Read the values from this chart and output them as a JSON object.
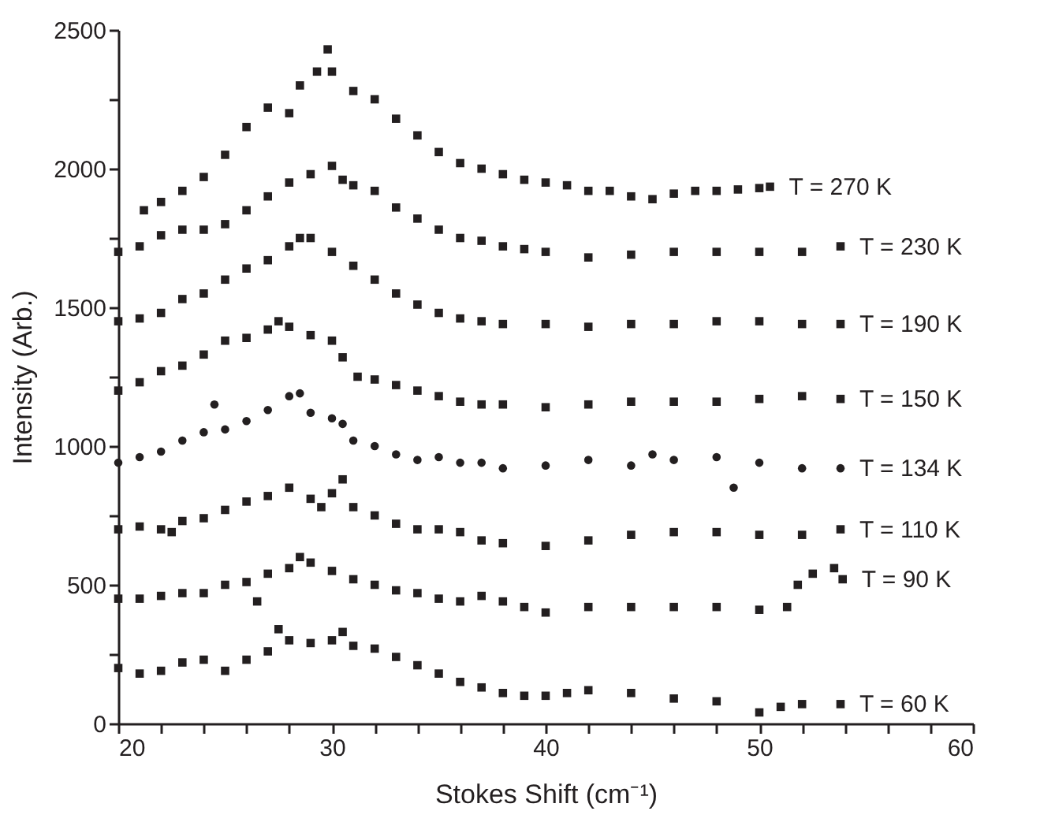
{
  "chart_data": {
    "type": "scatter",
    "xlabel": "Stokes Shift (cm⁻¹)",
    "ylabel": "Intensity (Arb.)",
    "xlim": [
      20,
      60
    ],
    "ylim": [
      0,
      2500
    ],
    "xticks": [
      20,
      {
        "value": 22,
        "label": null
      },
      {
        "value": 24,
        "label": null
      },
      {
        "value": 26,
        "label": null
      },
      {
        "value": 28,
        "label": null
      },
      30,
      {
        "value": 32,
        "label": null
      },
      {
        "value": 34,
        "label": null
      },
      {
        "value": 36,
        "label": null
      },
      {
        "value": 38,
        "label": null
      },
      40,
      {
        "value": 42,
        "label": null
      },
      {
        "value": 44,
        "label": null
      },
      {
        "value": 46,
        "label": null
      },
      {
        "value": 48,
        "label": null
      },
      50,
      {
        "value": 52,
        "label": null
      },
      {
        "value": 54,
        "label": null
      },
      {
        "value": 56,
        "label": null
      },
      {
        "value": 58,
        "label": null
      },
      60
    ],
    "yticks": [
      0,
      {
        "value": 250,
        "label": null
      },
      500,
      {
        "value": 750,
        "label": null
      },
      1000,
      {
        "value": 1250,
        "label": null
      },
      1500,
      {
        "value": 1750,
        "label": null
      },
      2000,
      {
        "value": 2250,
        "label": null
      },
      2500
    ],
    "grid": false,
    "legend": false,
    "series": [
      {
        "name": "T = 270 K",
        "color": "#231f20",
        "marker": "square",
        "x": [
          21.2,
          22,
          23,
          24,
          25,
          26,
          27,
          28,
          28.5,
          29.3,
          29.8,
          30,
          31,
          32,
          33,
          34,
          35,
          36,
          37,
          38,
          39,
          40,
          41,
          42,
          43,
          44,
          45,
          46,
          47,
          48,
          49,
          50,
          50.5
        ],
        "values": [
          1850,
          1880,
          1920,
          1970,
          2050,
          2150,
          2220,
          2200,
          2300,
          2350,
          2430,
          2350,
          2280,
          2250,
          2180,
          2120,
          2060,
          2020,
          2000,
          1980,
          1960,
          1950,
          1940,
          1920,
          1920,
          1900,
          1890,
          1910,
          1920,
          1920,
          1925,
          1930,
          1935
        ]
      },
      {
        "name": "T = 230 K",
        "color": "#231f20",
        "marker": "square",
        "x": [
          20,
          21,
          22,
          23,
          24,
          25,
          26,
          27,
          28,
          29,
          30,
          30.5,
          31,
          32,
          33,
          34,
          35,
          36,
          37,
          38,
          39,
          40,
          42,
          44,
          46,
          48,
          50,
          52,
          53.8
        ],
        "values": [
          1700,
          1720,
          1760,
          1780,
          1780,
          1800,
          1850,
          1900,
          1950,
          1980,
          2010,
          1960,
          1940,
          1920,
          1860,
          1820,
          1780,
          1750,
          1740,
          1720,
          1710,
          1700,
          1680,
          1690,
          1700,
          1700,
          1700,
          1700,
          1720
        ]
      },
      {
        "name": "T = 190 K",
        "color": "#231f20",
        "marker": "square",
        "x": [
          20,
          21,
          22,
          23,
          24,
          25,
          26,
          27,
          28,
          28.5,
          29,
          30,
          31,
          32,
          33,
          34,
          35,
          36,
          37,
          38,
          40,
          42,
          44,
          46,
          48,
          50,
          52,
          53.8
        ],
        "values": [
          1450,
          1460,
          1480,
          1530,
          1550,
          1600,
          1640,
          1670,
          1720,
          1750,
          1750,
          1700,
          1650,
          1600,
          1550,
          1510,
          1480,
          1460,
          1450,
          1440,
          1440,
          1430,
          1440,
          1440,
          1450,
          1450,
          1440,
          1440
        ]
      },
      {
        "name": "T = 150 K",
        "color": "#231f20",
        "marker": "square",
        "x": [
          20,
          21,
          22,
          23,
          24,
          25,
          26,
          27,
          27.5,
          28,
          29,
          30,
          30.5,
          31.2,
          32,
          33,
          34,
          35,
          36,
          37,
          38,
          40,
          42,
          44,
          46,
          48,
          50,
          52,
          53.8
        ],
        "values": [
          1200,
          1230,
          1270,
          1290,
          1330,
          1380,
          1390,
          1420,
          1450,
          1430,
          1400,
          1380,
          1320,
          1250,
          1240,
          1220,
          1200,
          1180,
          1160,
          1150,
          1150,
          1140,
          1150,
          1160,
          1160,
          1160,
          1170,
          1180,
          1170
        ]
      },
      {
        "name": "T = 134 K",
        "color": "#231f20",
        "marker": "circle",
        "x": [
          20,
          21,
          22,
          23,
          24,
          24.5,
          25,
          26,
          27,
          28,
          28.5,
          29,
          30,
          30.5,
          31,
          32,
          33,
          34,
          35,
          36,
          37,
          38,
          40,
          42,
          44,
          45,
          46,
          48,
          48.8,
          50,
          52,
          53.8
        ],
        "values": [
          940,
          960,
          980,
          1020,
          1050,
          1150,
          1060,
          1090,
          1130,
          1180,
          1190,
          1120,
          1100,
          1080,
          1020,
          1000,
          970,
          950,
          960,
          940,
          940,
          920,
          930,
          950,
          930,
          970,
          950,
          960,
          850,
          940,
          920,
          920
        ]
      },
      {
        "name": "T = 110 K",
        "color": "#231f20",
        "marker": "square",
        "x": [
          20,
          21,
          22,
          22.5,
          23,
          24,
          25,
          26,
          27,
          28,
          29,
          29.5,
          30,
          30.5,
          31,
          32,
          33,
          34,
          35,
          36,
          37,
          38,
          40,
          42,
          44,
          46,
          48,
          50,
          52,
          53.8
        ],
        "values": [
          700,
          710,
          700,
          690,
          730,
          740,
          770,
          800,
          820,
          850,
          810,
          780,
          830,
          880,
          780,
          750,
          720,
          700,
          700,
          690,
          660,
          650,
          640,
          660,
          680,
          690,
          690,
          680,
          680,
          700
        ]
      },
      {
        "name": "T = 90 K",
        "color": "#231f20",
        "marker": "square",
        "x": [
          20,
          21,
          22,
          23,
          24,
          25,
          26,
          26.5,
          27,
          28,
          28.5,
          29,
          30,
          31,
          32,
          33,
          34,
          35,
          36,
          37,
          38,
          39,
          40,
          42,
          44,
          46,
          48,
          50,
          51.3,
          51.8,
          52.5,
          53.5,
          53.9
        ],
        "values": [
          450,
          450,
          460,
          470,
          470,
          500,
          510,
          440,
          540,
          560,
          600,
          580,
          550,
          520,
          500,
          480,
          470,
          450,
          440,
          460,
          440,
          420,
          400,
          420,
          420,
          420,
          420,
          410,
          420,
          500,
          540,
          560,
          520
        ]
      },
      {
        "name": "T = 60 K",
        "color": "#231f20",
        "marker": "square",
        "x": [
          20,
          21,
          22,
          23,
          24,
          25,
          26,
          27,
          27.5,
          28,
          29,
          30,
          30.5,
          31,
          32,
          33,
          34,
          35,
          36,
          37,
          38,
          39,
          40,
          41,
          42,
          44,
          46,
          48,
          50,
          51,
          52,
          53.8
        ],
        "values": [
          200,
          180,
          190,
          220,
          230,
          190,
          230,
          260,
          340,
          300,
          290,
          300,
          330,
          280,
          270,
          240,
          210,
          180,
          150,
          130,
          110,
          100,
          100,
          110,
          120,
          110,
          90,
          80,
          40,
          60,
          70,
          70
        ]
      }
    ]
  }
}
